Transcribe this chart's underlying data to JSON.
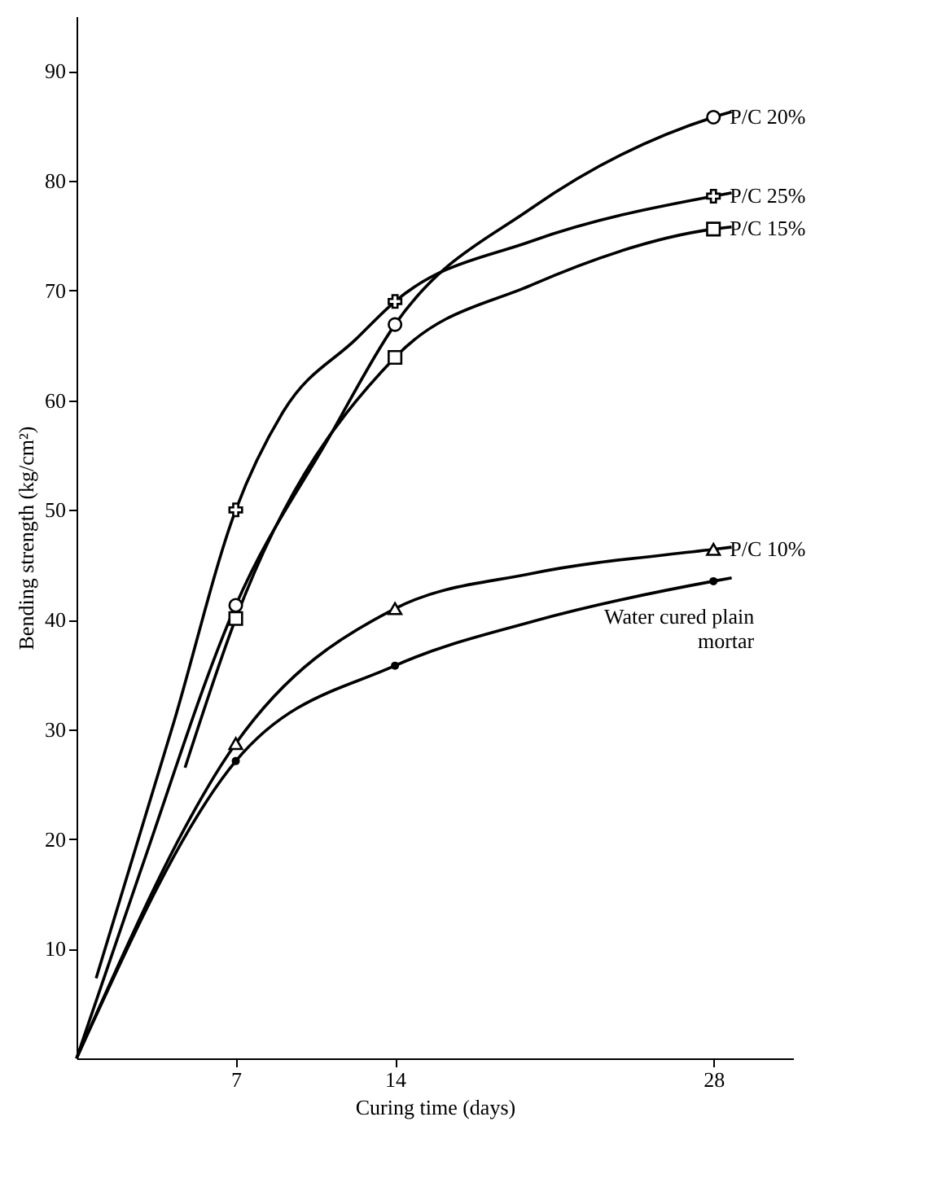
{
  "chart_data": {
    "type": "line",
    "xlabel": "Curing time (days)",
    "ylabel": "Bending strength (kg/cm²)",
    "xlim": [
      0,
      31.5
    ],
    "ylim": [
      0,
      95
    ],
    "xticks": [
      7,
      14,
      28
    ],
    "yticks": [
      10,
      20,
      30,
      40,
      50,
      60,
      70,
      80,
      90
    ],
    "grid": false,
    "legend": false,
    "line_style": "solid",
    "series": [
      {
        "type": "line",
        "color": "#000000",
        "marker": "none",
        "x": [
          0,
          2.8,
          7,
          11.1,
          14,
          20,
          28,
          28.8
        ],
        "values": [
          0,
          17,
          41.3,
          56.6,
          66.9,
          77.5,
          85.8,
          86.3
        ]
      },
      {
        "type": "line",
        "color": "#000000",
        "marker": "none",
        "x": [
          0.86,
          4.3,
          7,
          9.1,
          12.3,
          14,
          20,
          28,
          28.8
        ],
        "values": [
          7.3,
          30.8,
          50,
          59,
          65.6,
          69,
          74.5,
          78.6,
          78.9
        ]
      },
      {
        "type": "line",
        "color": "#000000",
        "marker": "none",
        "x": [
          4.77,
          7,
          14,
          20,
          28,
          28.8
        ],
        "values": [
          26.5,
          40.1,
          63.9,
          70.5,
          75.6,
          75.8
        ]
      },
      {
        "type": "line",
        "color": "#000000",
        "marker": "none",
        "x": [
          0,
          7,
          14,
          20,
          28,
          28.8
        ],
        "values": [
          0,
          28.7,
          41,
          44.2,
          46.4,
          46.6
        ]
      },
      {
        "type": "line",
        "color": "#000000",
        "marker": "none",
        "x": [
          0,
          7,
          14,
          20,
          28,
          28.8
        ],
        "values": [
          0,
          27.1,
          35.8,
          39.8,
          43.5,
          43.8
        ]
      },
      {
        "type": "scatter",
        "name": "P/C 20%",
        "color": "#000000",
        "marker": "circle",
        "x": [
          7,
          14,
          28
        ],
        "values": [
          41.3,
          66.9,
          85.8
        ]
      },
      {
        "type": "scatter",
        "name": "P/C 25%",
        "color": "#000000",
        "marker": "cross",
        "x": [
          7,
          14,
          28
        ],
        "values": [
          50,
          69,
          78.6
        ]
      },
      {
        "type": "scatter",
        "name": "P/C 15%",
        "color": "#000000",
        "marker": "square",
        "x": [
          7,
          14,
          28
        ],
        "values": [
          40.1,
          63.9,
          75.6
        ]
      },
      {
        "type": "scatter",
        "name": "P/C 10%",
        "color": "#000000",
        "marker": "triangle",
        "x": [
          7,
          14,
          28
        ],
        "values": [
          28.7,
          41,
          46.4
        ]
      },
      {
        "type": "scatter",
        "name": "Water cured plain mortar",
        "color": "#000000",
        "marker": "dot",
        "x": [
          7,
          14,
          28
        ],
        "values": [
          27.1,
          35.8,
          43.5
        ]
      }
    ]
  }
}
